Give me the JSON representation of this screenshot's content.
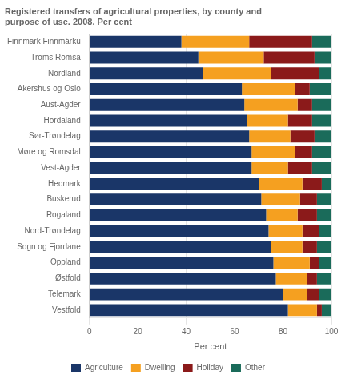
{
  "chart_data": {
    "type": "bar",
    "orientation": "horizontal",
    "stacked": true,
    "title": "Registered transfers of agricultural properties, by county and\npurpose of use. 2008. Per cent",
    "categories": [
      "Finnmark Finnmárku",
      "Troms Romsa",
      "Nordland",
      "Akershus og Oslo",
      "Aust-Agder",
      "Hordaland",
      "Sør-Trøndelag",
      "Møre og Romsdal",
      "Vest-Agder",
      "Hedmark",
      "Buskerud",
      "Rogaland",
      "Nord-Trøndelag",
      "Sogn og Fjordane",
      "Oppland",
      "Østfold",
      "Telemark",
      "Vestfold"
    ],
    "series": [
      {
        "name": "Agriculture",
        "color": "#1a3668",
        "values": [
          38,
          45,
          47,
          63,
          64,
          65,
          66,
          67,
          67,
          70,
          71,
          73,
          74,
          75,
          76,
          77,
          80,
          82
        ]
      },
      {
        "name": "Dwelling",
        "color": "#f5a020",
        "values": [
          28,
          27,
          28,
          22,
          22,
          17,
          17,
          18,
          15,
          18,
          16,
          13,
          14,
          13,
          15,
          13,
          10,
          12
        ]
      },
      {
        "name": "Holiday",
        "color": "#8b1a1a",
        "values": [
          26,
          21,
          20,
          6,
          6,
          10,
          10,
          7,
          10,
          8,
          7,
          8,
          7,
          6,
          4,
          4,
          5,
          2
        ]
      },
      {
        "name": "Other",
        "color": "#1a6b5a",
        "values": [
          8,
          7,
          5,
          9,
          8,
          8,
          7,
          8,
          8,
          4,
          6,
          6,
          5,
          6,
          5,
          6,
          5,
          4
        ]
      }
    ],
    "xlabel": "Per cent",
    "xlim": [
      0,
      100
    ],
    "xticks": [
      0,
      20,
      40,
      60,
      80,
      100
    ],
    "grid": true,
    "legend": "bottom"
  }
}
